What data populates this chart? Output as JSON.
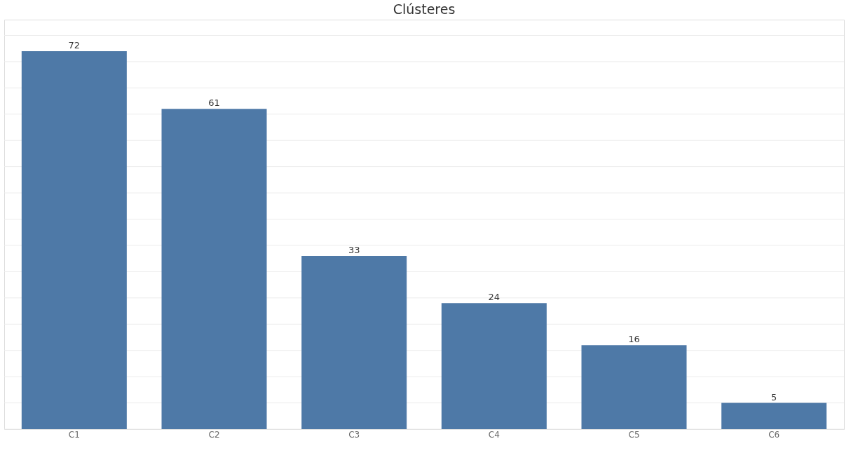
{
  "chart_data": {
    "type": "bar",
    "title": "Clústeres",
    "categories": [
      "C1",
      "C2",
      "C3",
      "C4",
      "C5",
      "C6"
    ],
    "values": [
      72,
      61,
      33,
      24,
      16,
      5
    ],
    "color": "#4e79a7",
    "ylim": [
      0,
      78
    ],
    "yticks": [
      {
        "value": 0,
        "label": null
      },
      {
        "value": 5,
        "label": null
      },
      {
        "value": 10,
        "label": null
      },
      {
        "value": 15,
        "label": null
      },
      {
        "value": 20,
        "label": null
      },
      {
        "value": 25,
        "label": null
      },
      {
        "value": 30,
        "label": null
      },
      {
        "value": 35,
        "label": null
      },
      {
        "value": 40,
        "label": null
      },
      {
        "value": 45,
        "label": null
      },
      {
        "value": 50,
        "label": null
      },
      {
        "value": 55,
        "label": null
      },
      {
        "value": 60,
        "label": null
      },
      {
        "value": 65,
        "label": null
      },
      {
        "value": 70,
        "label": null
      },
      {
        "value": 75,
        "label": null
      }
    ],
    "grid": "y",
    "tick_labels": "x",
    "data_labels": true
  }
}
